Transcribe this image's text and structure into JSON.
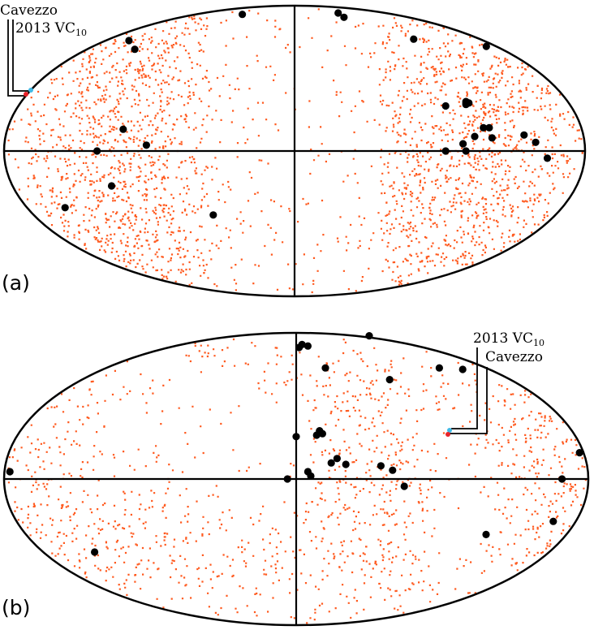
{
  "chart_data": [
    {
      "panel_label": "(a)",
      "type": "scatter",
      "projection": "mollweide-like all-sky ellipse",
      "axes": {
        "horizontal_line": true,
        "vertical_line": true
      },
      "background_points": {
        "color": "#ff5a1f",
        "count": 6500,
        "distribution": "concentrated in left and right lobes, sparse near center"
      },
      "highlight_points": {
        "color": "#000000",
        "points": [
          [
            -0.18,
            0.94
          ],
          [
            0.15,
            0.95
          ],
          [
            0.17,
            0.92
          ],
          [
            -0.57,
            0.76
          ],
          [
            -0.55,
            0.7
          ],
          [
            0.41,
            0.77
          ],
          [
            0.66,
            0.72
          ],
          [
            0.52,
            0.31
          ],
          [
            0.59,
            0.33
          ],
          [
            0.59,
            0.34
          ],
          [
            0.59,
            0.32
          ],
          [
            0.6,
            0.33
          ],
          [
            0.67,
            0.16
          ],
          [
            0.65,
            0.16
          ],
          [
            0.62,
            0.1
          ],
          [
            0.68,
            0.09
          ],
          [
            0.79,
            0.11
          ],
          [
            0.83,
            0.06
          ],
          [
            -0.59,
            0.15
          ],
          [
            -0.51,
            0.04
          ],
          [
            -0.68,
            0.0
          ],
          [
            0.58,
            0.05
          ],
          [
            0.52,
            0.0
          ],
          [
            0.59,
            0.0
          ],
          [
            0.87,
            -0.05
          ],
          [
            -0.63,
            -0.24
          ],
          [
            -0.79,
            -0.39
          ],
          [
            -0.28,
            -0.44
          ]
        ]
      },
      "annotations": [
        {
          "text": "Cavezzo",
          "color": "#e8232a"
        },
        {
          "text": "2013 VC",
          "subscript": "10",
          "color": "#3fb9e6"
        }
      ]
    },
    {
      "panel_label": "(b)",
      "type": "scatter",
      "projection": "mollweide-like all-sky ellipse",
      "axes": {
        "horizontal_line": true,
        "vertical_line": true
      },
      "background_points": {
        "color": "#ff5a1f",
        "count": 6500,
        "distribution": "dense right of center and at far edges, sparse bands"
      },
      "highlight_points": {
        "color": "#000000",
        "points": [
          [
            0.25,
            0.98
          ],
          [
            0.02,
            0.92
          ],
          [
            0.01,
            0.9
          ],
          [
            0.04,
            0.91
          ],
          [
            0.1,
            0.76
          ],
          [
            0.49,
            0.76
          ],
          [
            0.57,
            0.75
          ],
          [
            0.32,
            0.68
          ],
          [
            0.08,
            0.33
          ],
          [
            0.09,
            0.31
          ],
          [
            0.0,
            0.29
          ],
          [
            0.07,
            0.3
          ],
          [
            0.97,
            0.18
          ],
          [
            0.14,
            0.14
          ],
          [
            0.12,
            0.11
          ],
          [
            0.17,
            0.1
          ],
          [
            0.29,
            0.09
          ],
          [
            0.33,
            0.06
          ],
          [
            0.04,
            0.05
          ],
          [
            0.05,
            0.02
          ],
          [
            -0.98,
            0.05
          ],
          [
            -0.03,
            0.0
          ],
          [
            0.91,
            0.0
          ],
          [
            0.37,
            -0.05
          ],
          [
            0.88,
            -0.29
          ],
          [
            0.65,
            -0.38
          ],
          [
            -0.69,
            -0.5
          ]
        ]
      },
      "annotations": [
        {
          "text": "2013 VC",
          "subscript": "10",
          "color": "#3fb9e6"
        },
        {
          "text": "Cavezzo",
          "color": "#e8232a"
        }
      ]
    }
  ]
}
